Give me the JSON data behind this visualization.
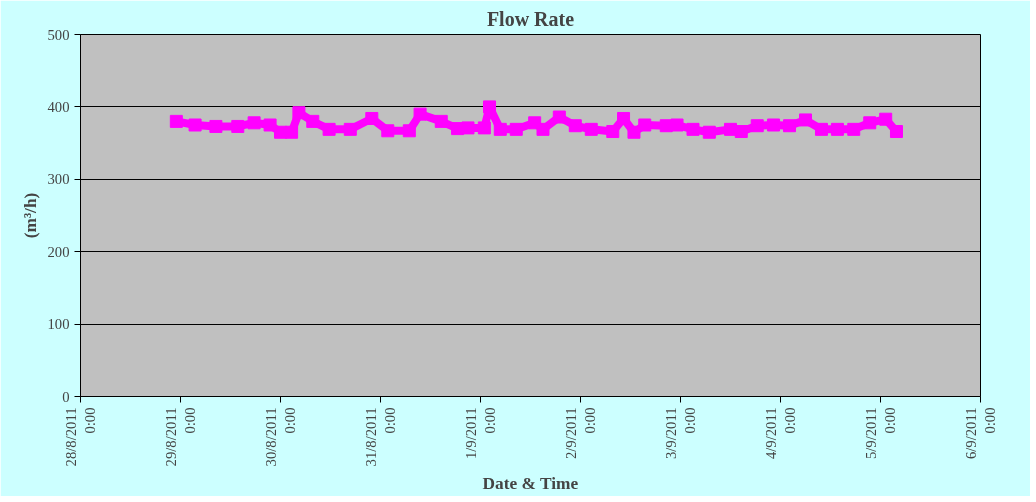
{
  "chart_data": {
    "type": "line",
    "title": "Flow Rate",
    "xlabel": "Date & Time",
    "ylabel": "(m³/h)",
    "x": [
      "2011-08-28T23:00",
      "2011-08-29T03:30",
      "2011-08-29T08:30",
      "2011-08-29T13:45",
      "2011-08-29T17:40",
      "2011-08-29T21:30",
      "2011-08-30T00:00",
      "2011-08-30T02:40",
      "2011-08-30T04:25",
      "2011-08-30T07:45",
      "2011-08-30T11:40",
      "2011-08-30T16:45",
      "2011-08-30T21:55",
      "2011-08-31T01:45",
      "2011-08-31T06:55",
      "2011-08-31T09:30",
      "2011-08-31T14:35",
      "2011-08-31T18:30",
      "2011-08-31T21:00",
      "2011-09-01T00:55",
      "2011-09-01T02:10",
      "2011-09-01T04:45",
      "2011-09-01T08:35",
      "2011-09-01T13:00",
      "2011-09-01T15:00",
      "2011-09-01T18:55",
      "2011-09-01T22:45",
      "2011-09-02T02:35",
      "2011-09-02T07:45",
      "2011-09-02T10:20",
      "2011-09-02T12:50",
      "2011-09-02T15:25",
      "2011-09-02T20:35",
      "2011-09-02T23:10",
      "2011-09-03T03:00",
      "2011-09-03T06:55",
      "2011-09-03T12:00",
      "2011-09-03T14:35",
      "2011-09-03T18:25",
      "2011-09-03T22:20",
      "2011-09-04T02:10",
      "2011-09-04T06:00",
      "2011-09-04T09:50",
      "2011-09-04T13:40",
      "2011-09-04T17:35",
      "2011-09-04T21:25",
      "2011-09-05T01:15",
      "2011-09-05T03:50"
    ],
    "series": [
      {
        "color": "#ff00ff",
        "values": [
          380,
          375,
          373,
          373,
          378,
          375,
          365,
          365,
          392,
          380,
          369,
          369,
          384,
          367,
          367,
          390,
          380,
          370,
          371,
          371,
          400,
          369,
          369,
          378,
          369,
          386,
          374,
          369,
          366,
          384,
          365,
          375,
          374,
          375,
          369,
          365,
          369,
          366,
          374,
          375,
          374,
          382,
          369,
          369,
          369,
          378,
          383,
          366
        ]
      }
    ],
    "xlim": [
      "2011-08-28",
      "2011-09-06"
    ],
    "xticks": [
      {
        "value": "2011-08-28",
        "label": "28/8/2011\n0:00"
      },
      {
        "value": "2011-08-29",
        "label": "29/8/2011\n0:00"
      },
      {
        "value": "2011-08-30",
        "label": "30/8/2011\n0:00"
      },
      {
        "value": "2011-08-31",
        "label": "31/8/2011\n0:00"
      },
      {
        "value": "2011-09-01",
        "label": "1/9/2011\n0:00"
      },
      {
        "value": "2011-09-02",
        "label": "2/9/2011\n0:00"
      },
      {
        "value": "2011-09-03",
        "label": "3/9/2011\n0:00"
      },
      {
        "value": "2011-09-04",
        "label": "4/9/2011\n0:00"
      },
      {
        "value": "2011-09-05",
        "label": "5/9/2011\n0:00"
      },
      {
        "value": "2011-09-06",
        "label": "6/9/2011\n0:00"
      }
    ],
    "ylim": [
      0,
      500
    ],
    "yticks": [
      0,
      100,
      200,
      300,
      400,
      500
    ],
    "grid": "y",
    "marker": "square",
    "line_style": "solid"
  }
}
